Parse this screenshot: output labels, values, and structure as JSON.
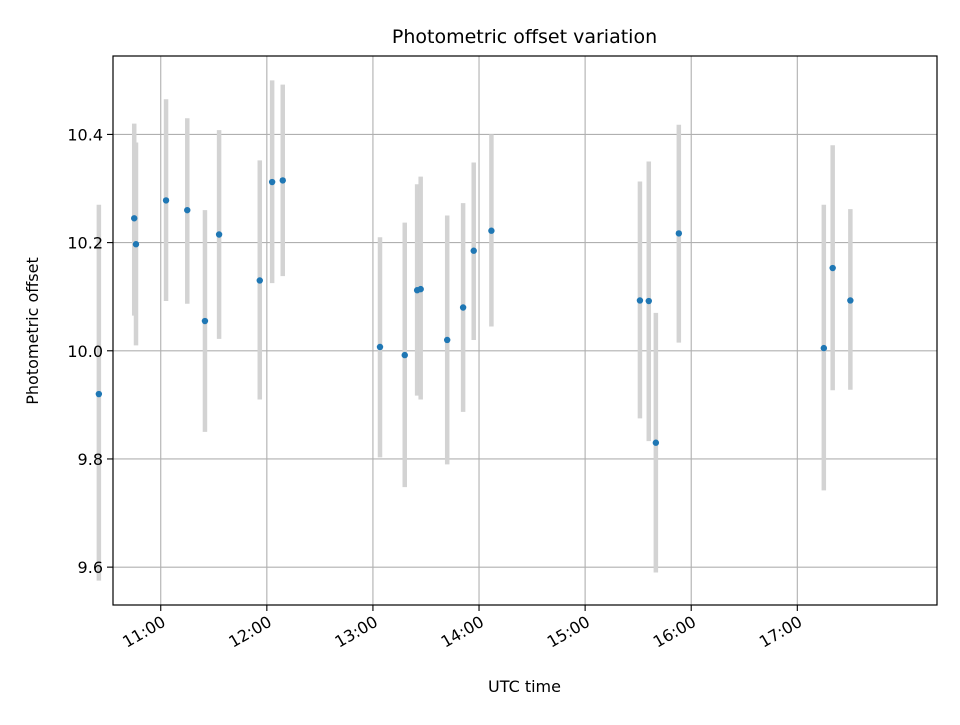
{
  "chart_data": {
    "type": "scatter",
    "title": "Photometric offset variation",
    "xlabel": "UTC time",
    "ylabel": "Photometric offset",
    "x_unit": "hours UTC",
    "xlim": [
      "10:33",
      "18:19"
    ],
    "ylim": [
      9.53,
      10.545
    ],
    "x_ticks": [
      "11:00",
      "12:00",
      "13:00",
      "14:00",
      "15:00",
      "16:00",
      "17:00"
    ],
    "y_ticks": [
      "9.6",
      "9.8",
      "10.0",
      "10.2",
      "10.4"
    ],
    "grid": true,
    "marker_color": "#1f77b4",
    "errorbar_color": "#d3d3d3",
    "points": [
      {
        "time": "10:25",
        "y": 9.92,
        "ylow": 9.575,
        "yhigh": 10.27
      },
      {
        "time": "10:45",
        "y": 10.245,
        "ylow": 10.065,
        "yhigh": 10.42
      },
      {
        "time": "10:46",
        "y": 10.197,
        "ylow": 10.01,
        "yhigh": 10.385
      },
      {
        "time": "11:03",
        "y": 10.278,
        "ylow": 10.092,
        "yhigh": 10.465
      },
      {
        "time": "11:15",
        "y": 10.26,
        "ylow": 10.087,
        "yhigh": 10.43
      },
      {
        "time": "11:25",
        "y": 10.055,
        "ylow": 9.85,
        "yhigh": 10.26
      },
      {
        "time": "11:33",
        "y": 10.215,
        "ylow": 10.022,
        "yhigh": 10.408
      },
      {
        "time": "11:56",
        "y": 10.13,
        "ylow": 9.91,
        "yhigh": 10.352
      },
      {
        "time": "12:03",
        "y": 10.312,
        "ylow": 10.125,
        "yhigh": 10.5
      },
      {
        "time": "12:09",
        "y": 10.315,
        "ylow": 10.138,
        "yhigh": 10.492
      },
      {
        "time": "13:04",
        "y": 10.007,
        "ylow": 9.803,
        "yhigh": 10.21
      },
      {
        "time": "13:18",
        "y": 9.992,
        "ylow": 9.748,
        "yhigh": 10.237
      },
      {
        "time": "13:25",
        "y": 10.112,
        "ylow": 9.917,
        "yhigh": 10.308
      },
      {
        "time": "13:27",
        "y": 10.114,
        "ylow": 9.91,
        "yhigh": 10.322
      },
      {
        "time": "13:42",
        "y": 10.02,
        "ylow": 9.79,
        "yhigh": 10.25
      },
      {
        "time": "13:51",
        "y": 10.08,
        "ylow": 9.887,
        "yhigh": 10.273
      },
      {
        "time": "13:57",
        "y": 10.185,
        "ylow": 10.02,
        "yhigh": 10.348
      },
      {
        "time": "14:07",
        "y": 10.222,
        "ylow": 10.045,
        "yhigh": 10.4
      },
      {
        "time": "15:31",
        "y": 10.093,
        "ylow": 9.875,
        "yhigh": 10.313
      },
      {
        "time": "15:36",
        "y": 10.092,
        "ylow": 9.833,
        "yhigh": 10.35
      },
      {
        "time": "15:40",
        "y": 9.83,
        "ylow": 9.59,
        "yhigh": 10.07
      },
      {
        "time": "15:53",
        "y": 10.217,
        "ylow": 10.015,
        "yhigh": 10.418
      },
      {
        "time": "17:15",
        "y": 10.005,
        "ylow": 9.742,
        "yhigh": 10.27
      },
      {
        "time": "17:20",
        "y": 10.153,
        "ylow": 9.927,
        "yhigh": 10.38
      },
      {
        "time": "17:30",
        "y": 10.093,
        "ylow": 9.928,
        "yhigh": 10.262
      }
    ]
  }
}
